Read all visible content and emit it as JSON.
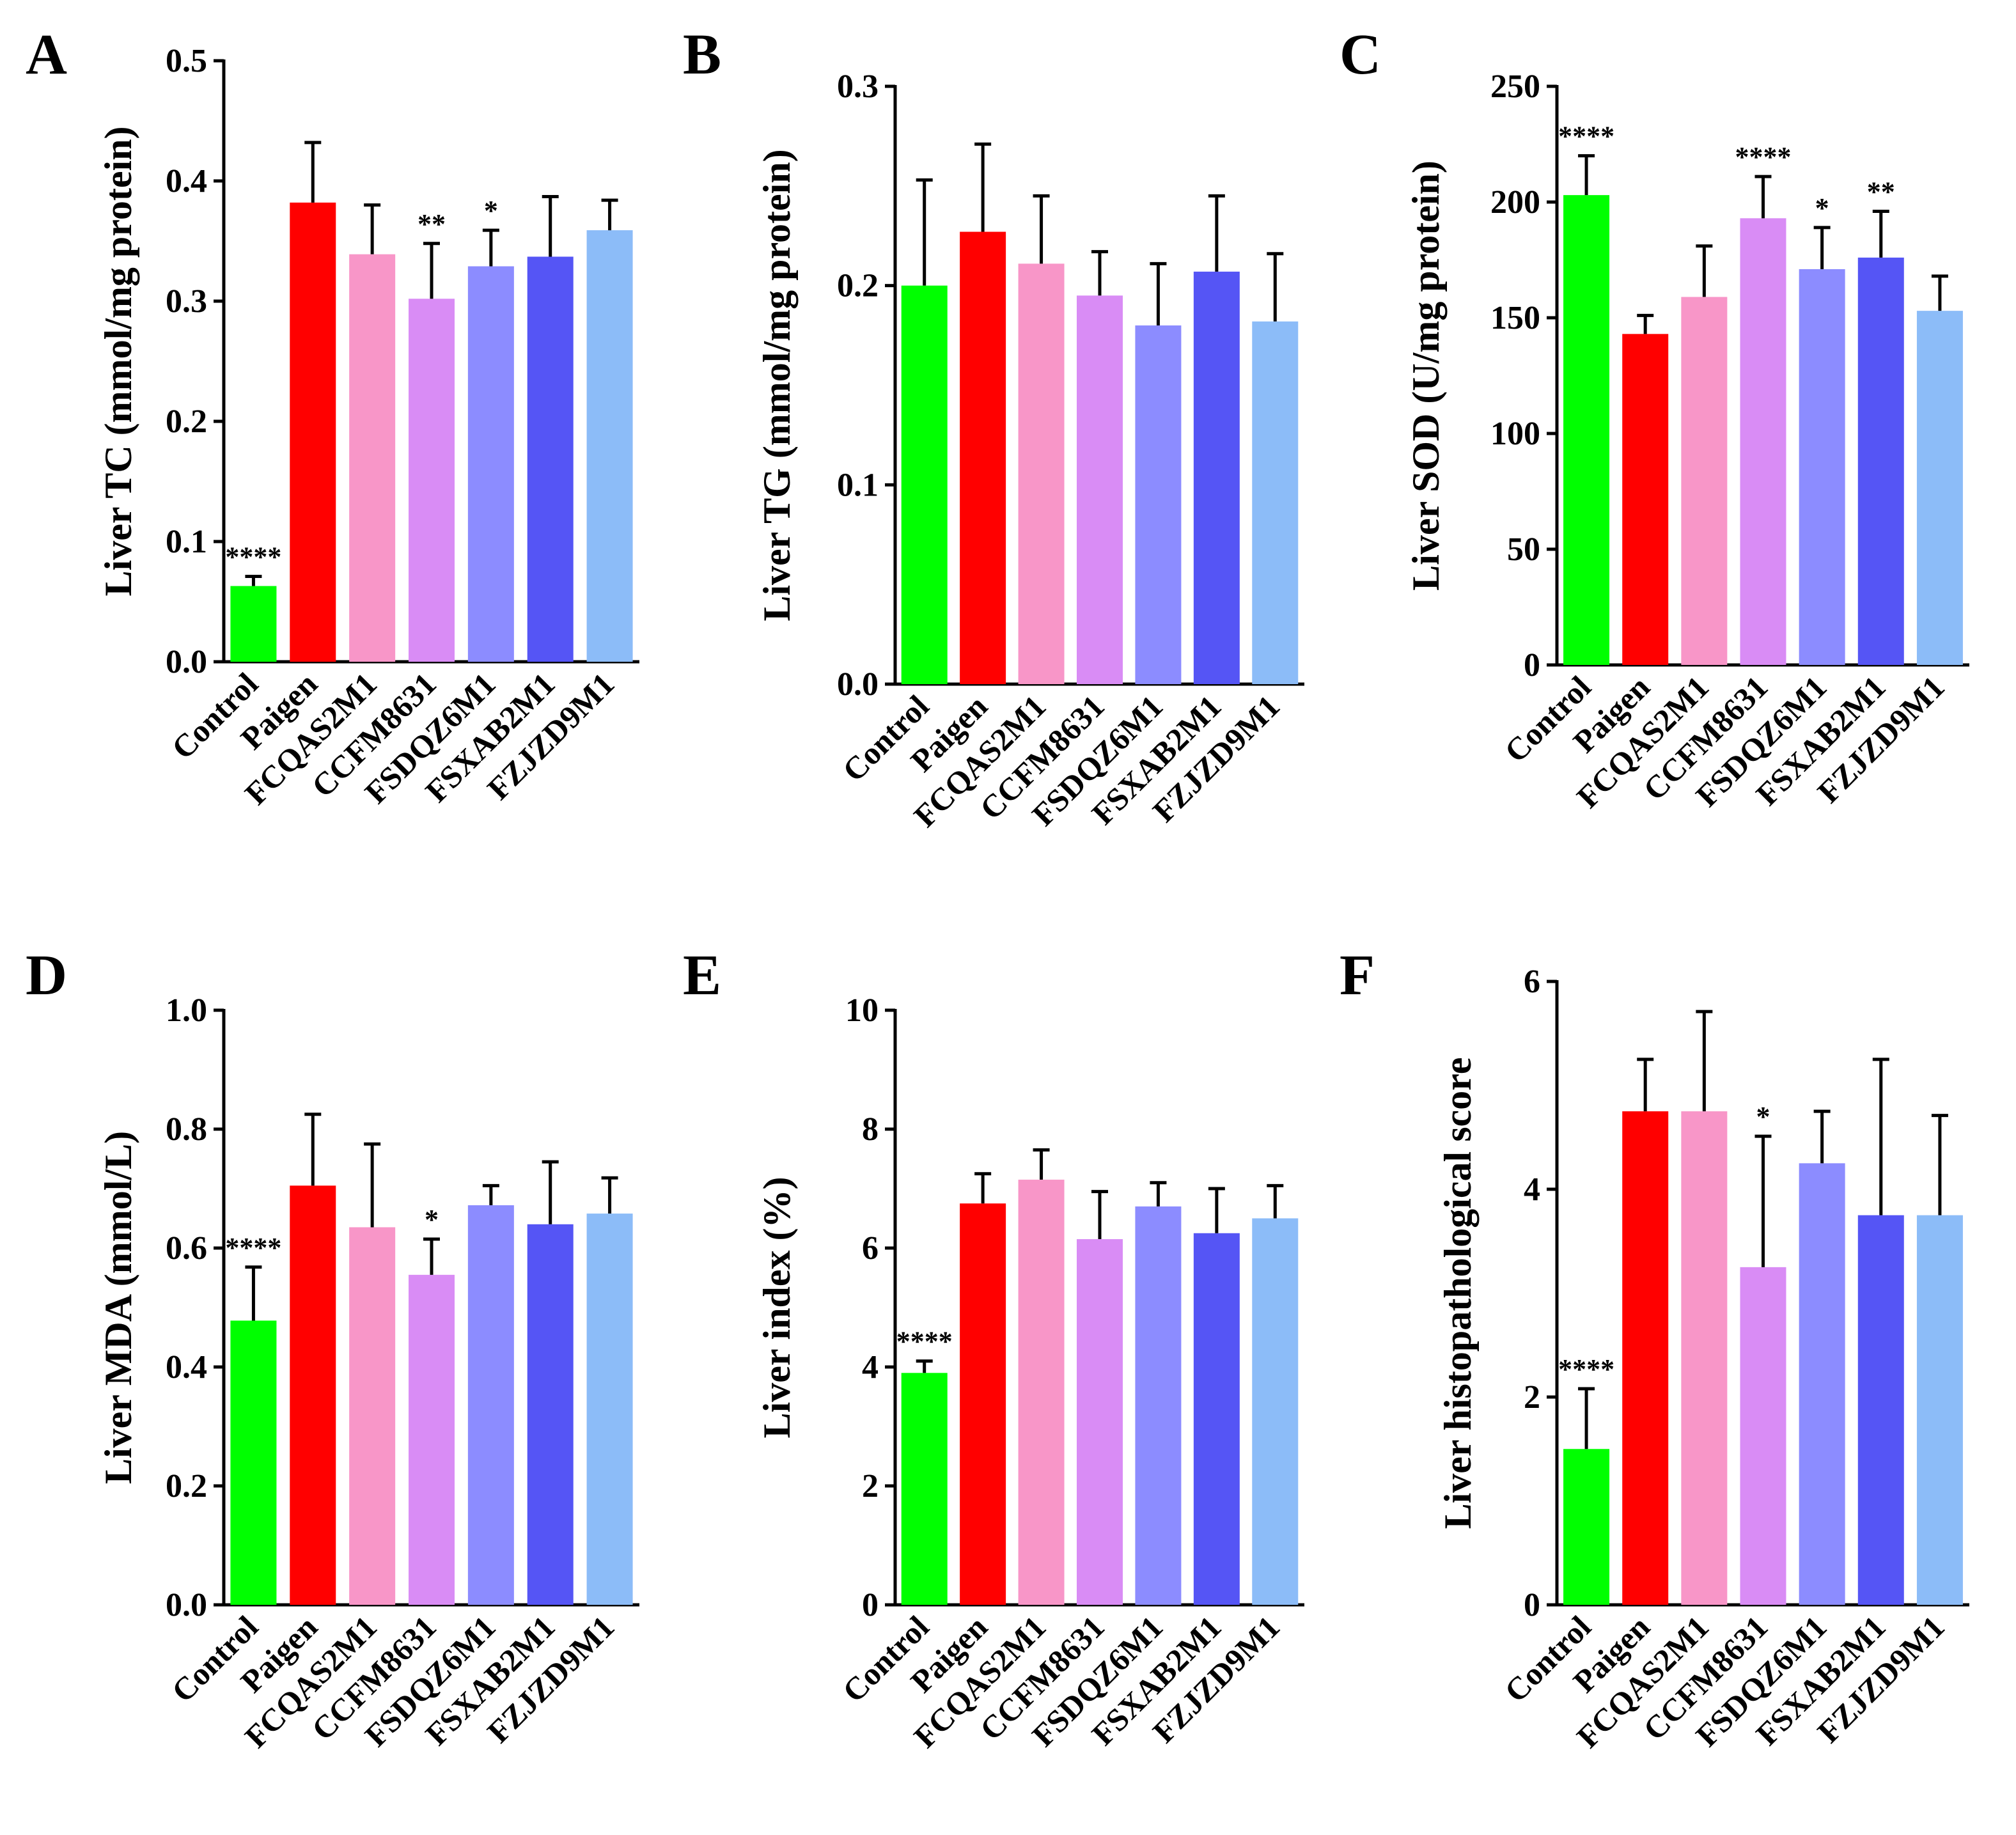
{
  "chart_data": [
    {
      "type": "bar",
      "panel": "A",
      "ylabel": "Liver TC (mmol/mg protein)",
      "ylim": [
        0,
        0.5
      ],
      "yticks": [
        "0.0",
        "0.1",
        "0.2",
        "0.3",
        "0.4",
        "0.5"
      ],
      "categories": [
        "Control",
        "Paigen",
        "FCQAS2M1",
        "CCFM8631",
        "FSDQZ6M1",
        "FSXAB2M1",
        "FZJZD9M1"
      ],
      "values": [
        0.063,
        0.382,
        0.339,
        0.302,
        0.329,
        0.337,
        0.359
      ],
      "errors": [
        0.008,
        0.05,
        0.041,
        0.046,
        0.03,
        0.05,
        0.025
      ],
      "significance": [
        "****",
        "",
        "",
        "**",
        "*",
        "",
        ""
      ]
    },
    {
      "type": "bar",
      "panel": "B",
      "ylabel": "Liver TG (mmol/mg protein)",
      "ylim": [
        0,
        0.3
      ],
      "yticks": [
        "0.0",
        "0.1",
        "0.2",
        "0.3"
      ],
      "categories": [
        "Control",
        "Paigen",
        "FCQAS2M1",
        "CCFM8631",
        "FSDQZ6M1",
        "FSXAB2M1",
        "FZJZD9M1"
      ],
      "values": [
        0.2,
        0.227,
        0.211,
        0.195,
        0.18,
        0.207,
        0.182
      ],
      "errors": [
        0.053,
        0.044,
        0.034,
        0.022,
        0.031,
        0.038,
        0.034
      ],
      "significance": [
        "",
        "",
        "",
        "",
        "",
        "",
        ""
      ]
    },
    {
      "type": "bar",
      "panel": "C",
      "ylabel": "Liver SOD (U/mg protein)",
      "ylim": [
        0,
        250
      ],
      "yticks": [
        "0",
        "50",
        "100",
        "150",
        "200",
        "250"
      ],
      "categories": [
        "Control",
        "Paigen",
        "FCQAS2M1",
        "CCFM8631",
        "FSDQZ6M1",
        "FSXAB2M1",
        "FZJZD9M1"
      ],
      "values": [
        203,
        143,
        159,
        193,
        171,
        176,
        153
      ],
      "errors": [
        17,
        8,
        22,
        18,
        18,
        20,
        15
      ],
      "significance": [
        "****",
        "",
        "",
        "****",
        "*",
        "**",
        ""
      ]
    },
    {
      "type": "bar",
      "panel": "D",
      "ylabel": "Liver MDA (mmol/L)",
      "ylim": [
        0,
        1.0
      ],
      "yticks": [
        "0.0",
        "0.2",
        "0.4",
        "0.6",
        "0.8",
        "1.0"
      ],
      "categories": [
        "Control",
        "Paigen",
        "FCQAS2M1",
        "CCFM8631",
        "FSDQZ6M1",
        "FSXAB2M1",
        "FZJZD9M1"
      ],
      "values": [
        0.478,
        0.705,
        0.635,
        0.555,
        0.672,
        0.64,
        0.658
      ],
      "errors": [
        0.09,
        0.12,
        0.14,
        0.06,
        0.033,
        0.105,
        0.06
      ],
      "significance": [
        "****",
        "",
        "",
        "*",
        "",
        "",
        ""
      ]
    },
    {
      "type": "bar",
      "panel": "E",
      "ylabel": "Liver index (%)",
      "ylim": [
        0,
        10
      ],
      "yticks": [
        "0",
        "2",
        "4",
        "6",
        "8",
        "10"
      ],
      "categories": [
        "Control",
        "Paigen",
        "FCQAS2M1",
        "CCFM8631",
        "FSDQZ6M1",
        "FSXAB2M1",
        "FZJZD9M1"
      ],
      "values": [
        3.9,
        6.75,
        7.15,
        6.15,
        6.7,
        6.25,
        6.5
      ],
      "errors": [
        0.2,
        0.5,
        0.5,
        0.8,
        0.4,
        0.75,
        0.55
      ],
      "significance": [
        "****",
        "",
        "",
        "",
        "",
        "",
        ""
      ]
    },
    {
      "type": "bar",
      "panel": "F",
      "ylabel": "Liver histopathological score",
      "ylim": [
        0,
        6
      ],
      "yticks": [
        "0",
        "2",
        "4",
        "6"
      ],
      "categories": [
        "Control",
        "Paigen",
        "FCQAS2M1",
        "CCFM8631",
        "FSDQZ6M1",
        "FSXAB2M1",
        "FZJZD9M1"
      ],
      "values": [
        1.5,
        4.75,
        4.75,
        3.25,
        4.25,
        3.75,
        3.75
      ],
      "errors": [
        0.58,
        0.5,
        0.96,
        1.26,
        0.5,
        1.5,
        0.96
      ],
      "significance": [
        "****",
        "",
        "",
        "*",
        "",
        "",
        ""
      ]
    }
  ],
  "series_colors": [
    "#00ff00",
    "#ff0000",
    "#f896c8",
    "#d98cf5",
    "#8c8cff",
    "#5555f5",
    "#8cbcf8"
  ]
}
